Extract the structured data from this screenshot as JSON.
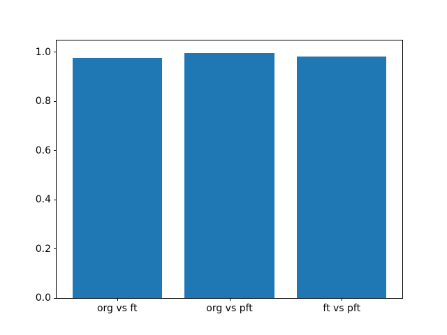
{
  "chart_data": {
    "type": "bar",
    "categories": [
      "org vs ft",
      "org vs pft",
      "ft vs pft"
    ],
    "values": [
      0.977,
      0.996,
      0.983
    ],
    "title": "",
    "xlabel": "",
    "ylabel": "",
    "ylim": [
      0,
      1.048
    ],
    "ytick_values": [
      0.0,
      0.2,
      0.4,
      0.6,
      0.8,
      1.0
    ],
    "ytick_labels": [
      "0.0",
      "0.2",
      "0.4",
      "0.6",
      "0.8",
      "1.0"
    ],
    "bar_color": "#1f77b4",
    "bar_width": 0.8,
    "x_margin": 0.05,
    "grid": false,
    "legend_position": "none",
    "background_color": "#ffffff",
    "axis_color": "#000000"
  }
}
